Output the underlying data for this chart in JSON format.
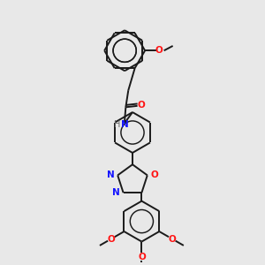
{
  "background_color": "#e8e8e8",
  "bond_color": "#1a1a1a",
  "nitrogen_color": "#1414ff",
  "oxygen_color": "#ff1414",
  "nh_color": "#1414ff",
  "h_color": "#555555",
  "lw": 1.4,
  "figsize": [
    3.0,
    3.0
  ],
  "dpi": 100,
  "xlim": [
    0,
    10
  ],
  "ylim": [
    0,
    10
  ]
}
